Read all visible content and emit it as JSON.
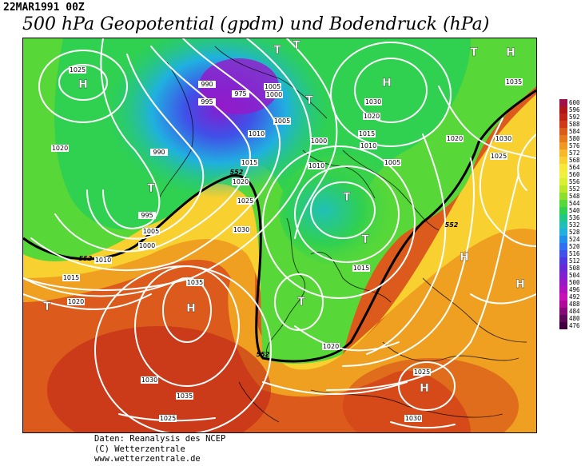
{
  "header": {
    "date": "22MAR1991 00Z",
    "title": "500 hPa Geopotential (gpdm) und Bodendruck (hPa)"
  },
  "credits": {
    "line1": "Daten: Reanalysis des NCEP",
    "line2": "(C) Wetterzentrale",
    "line3": "www.wetterzentrale.de"
  },
  "legend": {
    "levels": [
      "600",
      "596",
      "592",
      "588",
      "584",
      "580",
      "576",
      "572",
      "568",
      "564",
      "560",
      "556",
      "552",
      "548",
      "544",
      "540",
      "536",
      "532",
      "528",
      "524",
      "520",
      "516",
      "512",
      "508",
      "504",
      "500",
      "496",
      "492",
      "488",
      "484",
      "480",
      "476"
    ],
    "colors": [
      "#a0124a",
      "#b01818",
      "#c02418",
      "#d03a18",
      "#dc5a1c",
      "#e8781c",
      "#f09820",
      "#f8b828",
      "#f8d030",
      "#f8e838",
      "#f0f040",
      "#d8f030",
      "#b8e828",
      "#8ce02c",
      "#58d838",
      "#30d050",
      "#20c888",
      "#20c0b8",
      "#20b0e0",
      "#2090f0",
      "#3070f0",
      "#4050e8",
      "#5038e0",
      "#6828d8",
      "#8020d0",
      "#9818c8",
      "#b010c0",
      "#c810b8",
      "#b00898",
      "#880878",
      "#600858",
      "#400040"
    ]
  },
  "map": {
    "pressure_labels": [
      "1025",
      "1020",
      "1005",
      "1000",
      "995",
      "990",
      "975",
      "1010",
      "1015",
      "1020",
      "1025",
      "1030",
      "1035",
      "1035",
      "1030",
      "1025",
      "1020",
      "1015",
      "1010",
      "1005",
      "1000",
      "995",
      "990",
      "1005",
      "1030",
      "1020",
      "1015",
      "1010",
      "1000",
      "1005",
      "1010",
      "1015",
      "1020",
      "1025",
      "1030",
      "1020",
      "1035",
      "1030",
      "1025"
    ],
    "pressure_systems": [
      {
        "type": "H"
      },
      {
        "type": "H"
      },
      {
        "type": "H"
      },
      {
        "type": "H"
      },
      {
        "type": "H"
      },
      {
        "type": "H"
      },
      {
        "type": "H"
      },
      {
        "type": "T"
      },
      {
        "type": "T"
      },
      {
        "type": "T"
      },
      {
        "type": "T"
      },
      {
        "type": "T"
      },
      {
        "type": "T"
      },
      {
        "type": "T"
      },
      {
        "type": "T"
      },
      {
        "type": "T"
      }
    ],
    "gpdm_labels": [
      "552",
      "552",
      "552",
      "552"
    ]
  }
}
